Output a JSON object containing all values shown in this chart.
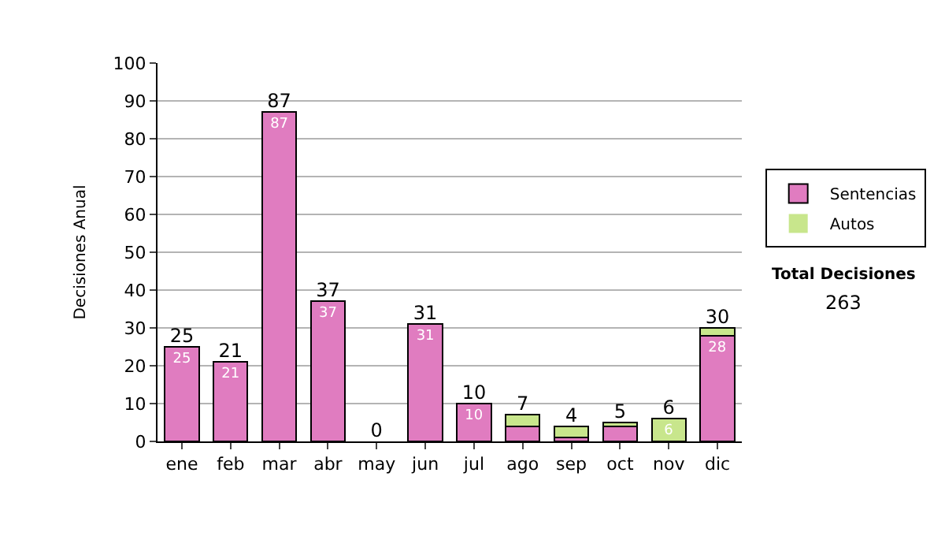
{
  "chart_data": {
    "type": "bar",
    "stacked": true,
    "ylabel": "Decisiones Anual",
    "categories": [
      "ene",
      "feb",
      "mar",
      "abr",
      "may",
      "jun",
      "jul",
      "ago",
      "sep",
      "oct",
      "nov",
      "dic"
    ],
    "series": [
      {
        "name": "Sentencias",
        "color": "#e07cc0",
        "values": [
          25,
          21,
          87,
          37,
          0,
          31,
          10,
          4,
          1,
          4,
          0,
          28
        ],
        "value_labels": [
          "25",
          "21",
          "87",
          "37",
          null,
          "31",
          "10",
          null,
          null,
          null,
          null,
          "28"
        ]
      },
      {
        "name": "Autos",
        "color": "#c8e68c",
        "values": [
          0,
          0,
          0,
          0,
          0,
          0,
          0,
          3,
          3,
          1,
          6,
          2
        ],
        "value_labels": [
          null,
          null,
          null,
          null,
          null,
          null,
          null,
          null,
          null,
          null,
          "6",
          null
        ]
      }
    ],
    "totals": [
      "25",
      "21",
      "87",
      "37",
      "0",
      "31",
      "10",
      "7",
      "4",
      "5",
      "6",
      "30"
    ],
    "ylim": [
      0,
      100
    ],
    "yticks": [
      0,
      10,
      20,
      30,
      40,
      50,
      60,
      70,
      80,
      90,
      100
    ],
    "grid": "y",
    "legend": "right",
    "annotations": [
      "Total Decisiones",
      "263"
    ]
  }
}
